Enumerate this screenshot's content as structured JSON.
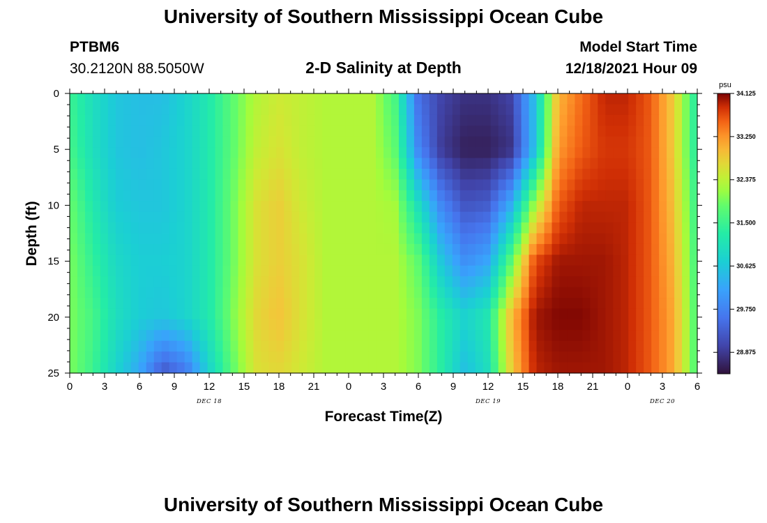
{
  "header": {
    "title": "University of Southern Mississippi Ocean Cube",
    "station": "PTBM6",
    "coordinates": "30.2120N  88.5050W",
    "subtitle": "2-D Salinity at Depth",
    "start_label": "Model Start Time",
    "start_value": "12/18/2021 Hour 09"
  },
  "footer": {
    "title": "University of Southern Mississippi Ocean Cube"
  },
  "chart_data": {
    "type": "heatmap",
    "title": "2-D Salinity at Depth",
    "xlabel": "Forecast Time(Z)",
    "ylabel": "Depth (ft)",
    "x_hours_range": [
      0,
      54
    ],
    "ylim": [
      0,
      25
    ],
    "y_inverted": true,
    "x_tick_labels": [
      "0",
      "3",
      "6",
      "9",
      "12",
      "15",
      "18",
      "21",
      "0",
      "3",
      "6",
      "9",
      "12",
      "15",
      "18",
      "21",
      "0",
      "3",
      "6"
    ],
    "y_tick_labels": [
      "0",
      "5",
      "10",
      "15",
      "20",
      "25"
    ],
    "date_labels": [
      {
        "text": "DEC 18",
        "hour": 12
      },
      {
        "text": "DEC 19",
        "hour": 36
      },
      {
        "text": "DEC 20",
        "hour": 51
      }
    ],
    "colorbar": {
      "unit": "psu",
      "min": 28.44,
      "max": 34.125,
      "tick_labels": [
        "34.125",
        "33.250",
        "32.375",
        "31.500",
        "30.625",
        "29.750",
        "28.875"
      ],
      "tick_values": [
        34.125,
        33.25,
        32.375,
        31.5,
        30.625,
        29.75,
        28.875
      ]
    },
    "salinity_psu": {
      "hours": [
        0,
        2,
        4,
        6,
        8,
        10,
        12,
        14,
        16,
        18,
        20,
        22,
        24,
        26,
        28,
        30,
        32,
        34,
        36,
        38,
        40,
        42,
        44,
        46,
        48,
        50,
        52,
        54
      ],
      "depths_ft": [
        0,
        5,
        10,
        15,
        20,
        25
      ],
      "values": [
        [
          31.5,
          31.0,
          30.6,
          30.5,
          30.5,
          30.8,
          31.2,
          31.8,
          32.3,
          32.5,
          32.4,
          32.3,
          32.3,
          32.3,
          31.6,
          29.5,
          29.0,
          28.8,
          28.8,
          29.0,
          30.5,
          33.0,
          33.5,
          33.9,
          33.9,
          33.6,
          32.8,
          31.2
        ],
        [
          31.6,
          31.0,
          30.6,
          30.5,
          30.6,
          30.8,
          31.2,
          31.8,
          32.4,
          32.6,
          32.4,
          32.3,
          32.3,
          32.3,
          31.8,
          29.8,
          28.9,
          28.6,
          28.6,
          28.8,
          30.5,
          33.2,
          33.6,
          33.8,
          33.8,
          33.6,
          32.8,
          31.2
        ],
        [
          31.9,
          31.2,
          30.7,
          30.6,
          30.6,
          30.8,
          31.2,
          31.9,
          32.6,
          32.8,
          32.5,
          32.3,
          32.3,
          32.3,
          32.2,
          31.0,
          29.8,
          29.2,
          29.3,
          30.3,
          32.2,
          33.6,
          33.9,
          33.9,
          33.9,
          33.6,
          32.9,
          31.4
        ],
        [
          32.0,
          31.4,
          30.9,
          30.7,
          30.7,
          30.8,
          31.2,
          31.9,
          32.6,
          32.8,
          32.6,
          32.3,
          32.3,
          32.3,
          32.3,
          31.8,
          30.6,
          29.9,
          30.2,
          31.8,
          33.7,
          34.0,
          34.0,
          34.0,
          33.9,
          33.6,
          33.0,
          31.5
        ],
        [
          32.0,
          31.6,
          31.0,
          30.7,
          30.6,
          30.8,
          31.2,
          32.0,
          32.7,
          32.9,
          32.6,
          32.3,
          32.3,
          32.3,
          32.3,
          32.0,
          31.3,
          30.8,
          31.2,
          33.0,
          34.0,
          34.1,
          34.1,
          34.0,
          33.9,
          33.6,
          33.1,
          31.6
        ],
        [
          32.0,
          31.5,
          30.8,
          30.2,
          29.2,
          29.6,
          30.8,
          31.8,
          32.6,
          32.7,
          32.5,
          32.3,
          32.3,
          32.3,
          32.3,
          32.0,
          31.3,
          30.5,
          31.0,
          32.8,
          33.9,
          34.0,
          34.0,
          34.0,
          33.9,
          33.6,
          33.1,
          31.6
        ]
      ]
    }
  }
}
